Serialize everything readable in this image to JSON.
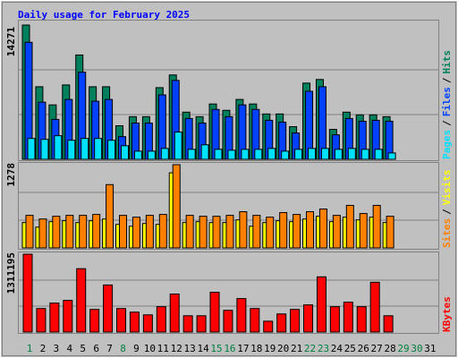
{
  "legend_separator": "/",
  "highlight_color": "#008040",
  "highlighted_categories": [
    "1",
    "8",
    "15",
    "16",
    "22",
    "23",
    "29",
    "30"
  ],
  "chart_data": [
    {
      "type": "bar",
      "title": "Daily usage for February 2025",
      "grid": true,
      "ylim": [
        0,
        14271
      ],
      "yticks": [
        14271
      ],
      "series": [
        {
          "name": "Hits",
          "color": "#00805c",
          "values": [
            14271,
            7714,
            5786,
            7907,
            11089,
            7714,
            7714,
            3568,
            4532,
            4532,
            7618,
            8968,
            5014,
            4532,
            5882,
            5207,
            6364,
            5882,
            4821,
            4821,
            3471,
            8100,
            8486,
            3182,
            5014,
            4725,
            4725,
            4532,
            null,
            null,
            null
          ]
        },
        {
          "name": "Files",
          "color": "#0040ff",
          "values": [
            12439,
            6075,
            4243,
            6364,
            9257,
            6171,
            6364,
            2411,
            3857,
            3857,
            6846,
            8389,
            4339,
            3857,
            5303,
            4532,
            5786,
            5303,
            4146,
            3953,
            2796,
            7232,
            7714,
            2604,
            4339,
            4050,
            4146,
            4050,
            null,
            null,
            null
          ]
        },
        {
          "name": "Pages",
          "color": "#00e0ff",
          "values": [
            2218,
            2121,
            2507,
            2025,
            2218,
            2218,
            2025,
            1446,
            868,
            868,
            1157,
            2893,
            1061,
            1543,
            1061,
            964,
            1061,
            1061,
            1157,
            868,
            1061,
            1157,
            1157,
            1061,
            1157,
            1061,
            1061,
            675,
            null,
            null,
            null
          ]
        }
      ]
    },
    {
      "type": "bar",
      "grid": true,
      "ylim": [
        0,
        1278
      ],
      "yticks": [
        1278
      ],
      "series": [
        {
          "name": "Visits",
          "color": "#ffff00",
          "values": [
            389,
            319,
            403,
            417,
            389,
            417,
            444,
            361,
            333,
            375,
            361,
            1153,
            389,
            403,
            389,
            389,
            431,
            333,
            389,
            417,
            403,
            444,
            486,
            403,
            472,
            431,
            472,
            389,
            null,
            null,
            null
          ]
        },
        {
          "name": "Sites",
          "color": "#ff8000",
          "values": [
            500,
            444,
            486,
            500,
            500,
            514,
            972,
            500,
            472,
            500,
            514,
            1278,
            500,
            486,
            486,
            500,
            556,
            500,
            472,
            542,
            514,
            556,
            597,
            500,
            653,
            528,
            653,
            486,
            null,
            null,
            null
          ]
        }
      ]
    },
    {
      "type": "bar",
      "grid": true,
      "ylim": [
        0,
        1311195
      ],
      "yticks": [
        1311195
      ],
      "categories": [
        "1",
        "2",
        "3",
        "4",
        "5",
        "6",
        "7",
        "8",
        "9",
        "10",
        "11",
        "12",
        "13",
        "14",
        "15",
        "16",
        "17",
        "18",
        "19",
        "20",
        "21",
        "22",
        "23",
        "24",
        "25",
        "26",
        "27",
        "28",
        "29",
        "30",
        "31"
      ],
      "series": [
        {
          "name": "KBytes",
          "color": "#ff0000",
          "values": [
            1311195,
            396400,
            487880,
            533600,
            1067200,
            381150,
            792800,
            396400,
            335400,
            289700,
            426900,
            640300,
            274400,
            274400,
            670800,
            365900,
            564100,
            396400,
            183000,
            304900,
            381150,
            457400,
            930000,
            426900,
            503100,
            426900,
            838500,
            274400,
            null,
            null,
            null
          ]
        }
      ]
    }
  ]
}
